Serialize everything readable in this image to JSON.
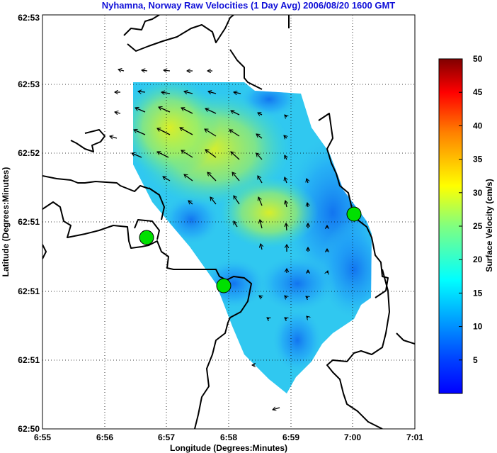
{
  "chart_data": {
    "type": "heatmap",
    "title": "Nyhamna, Norway Raw Velocities (1 Day Avg) 2006/08/20 1600 GMT",
    "xlabel": "Longitude (Degrees:Minutes)",
    "ylabel": "Latitude (Degrees:Minutes)",
    "x_tick_labels": [
      "6:55",
      "6:56",
      "6:57",
      "6:58",
      "6:59",
      "7:00",
      "7:01"
    ],
    "y_tick_labels": [
      "62:53",
      "62:53",
      "62:52",
      "62:51",
      "62:51",
      "62:51",
      "62:50"
    ],
    "colorbar": {
      "label": "Surface Velocity (cm/s)",
      "ticks": [
        5,
        10,
        15,
        20,
        25,
        30,
        35,
        40,
        45,
        50
      ],
      "range": [
        0,
        50
      ],
      "colormap": "jet"
    },
    "grid": true,
    "grid_style": "dotted",
    "markers": {
      "description": "radar sites",
      "count": 3,
      "color": "#00e000"
    },
    "vectors": {
      "description": "surface current arrows",
      "dominant_direction": "northwest"
    }
  },
  "colors": {
    "title": "#1010d8",
    "coastline": "#000000",
    "marker": "#00e000"
  }
}
